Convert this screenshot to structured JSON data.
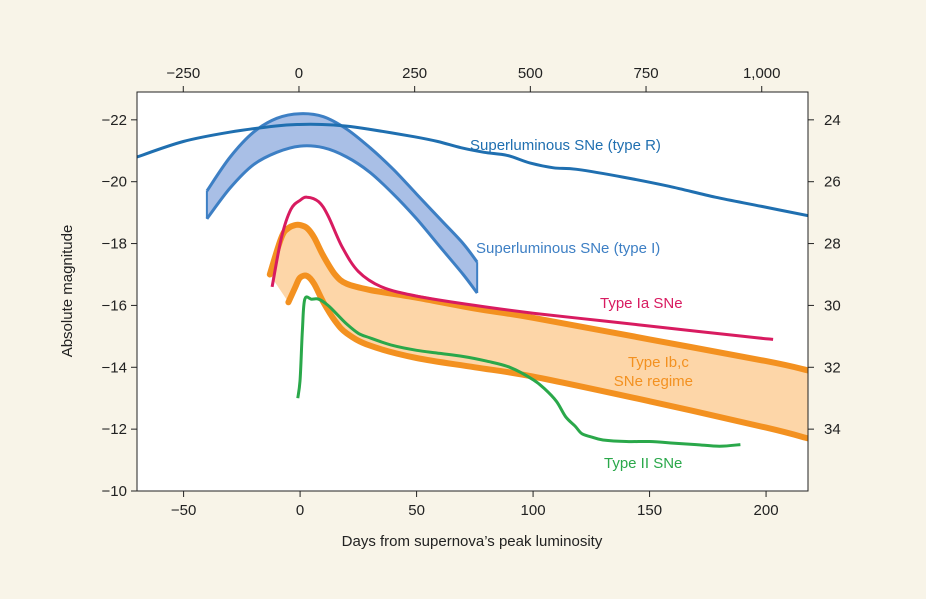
{
  "colors": {
    "background": "#f8f4e8",
    "plot_background": "#ffffff",
    "axis": "#222222",
    "superluminous_r": "#1f6fb0",
    "superluminous_i_line": "#3d7fc4",
    "superluminous_i_fill": "#a9bfe6",
    "type_ia": "#d81b60",
    "type_ibc_line": "#f39120",
    "type_ibc_fill": "#fdd6a8",
    "type_ii": "#2aa84a"
  },
  "chart_data": {
    "type": "line",
    "xlabel": "Days from supernova’s peak luminosity",
    "ylabel": "Absolute magnitude",
    "xlim": [
      -70,
      218
    ],
    "ylim": [
      -10,
      -22.9
    ],
    "x_ticks": [
      -50,
      0,
      50,
      100,
      150,
      200
    ],
    "x_tick_labels": [
      "−50",
      "0",
      "50",
      "100",
      "150",
      "200"
    ],
    "y_ticks": [
      -22,
      -20,
      -18,
      -16,
      -14,
      -12,
      -10
    ],
    "y_tick_labels": [
      "−22",
      "−20",
      "−18",
      "−16",
      "−14",
      "−12",
      "−10"
    ],
    "top_axis": {
      "ticks": [
        -250,
        0,
        250,
        500,
        750,
        1000
      ],
      "tick_labels": [
        "−250",
        "0",
        "250",
        "500",
        "750",
        "1,000"
      ],
      "range": [
        -350,
        1100
      ]
    },
    "right_axis": {
      "ticks": [
        24,
        26,
        28,
        30,
        32,
        34
      ],
      "tick_labels": [
        "24",
        "26",
        "28",
        "30",
        "32",
        "34"
      ],
      "offset_from_left": 46
    },
    "series": [
      {
        "name": "Superluminous SNe (type R)",
        "kind": "line",
        "x": [
          -350,
          -250,
          -150,
          -50,
          0,
          50,
          100,
          150,
          250,
          300,
          350,
          400,
          450,
          500,
          550,
          600,
          700,
          800,
          900,
          1000,
          1100
        ],
        "y": [
          -20.8,
          -21.3,
          -21.6,
          -21.8,
          -21.85,
          -21.85,
          -21.8,
          -21.7,
          -21.45,
          -21.3,
          -21.1,
          -20.95,
          -20.85,
          -20.6,
          -20.45,
          -20.4,
          -20.15,
          -19.85,
          -19.5,
          -19.2,
          -18.9
        ]
      },
      {
        "name": "Superluminous SNe (type I)",
        "kind": "band",
        "x": [
          -40,
          -30,
          -20,
          -10,
          0,
          10,
          20,
          30,
          40,
          50,
          60,
          70,
          76
        ],
        "y_upper": [
          -19.7,
          -20.8,
          -21.6,
          -22.05,
          -22.2,
          -22.1,
          -21.7,
          -21.1,
          -20.4,
          -19.6,
          -18.8,
          -18.0,
          -17.4
        ],
        "y_lower": [
          -18.8,
          -19.8,
          -20.55,
          -20.95,
          -21.15,
          -21.1,
          -20.8,
          -20.3,
          -19.6,
          -18.8,
          -17.9,
          -17.0,
          -16.4
        ]
      },
      {
        "name": "Type Ia SNe",
        "kind": "line",
        "x": [
          -12,
          -8,
          -4,
          0,
          3,
          8,
          12,
          18,
          25,
          35,
          50,
          75,
          100,
          130,
          160,
          190,
          203
        ],
        "y": [
          -16.6,
          -18.2,
          -19.1,
          -19.4,
          -19.5,
          -19.35,
          -18.9,
          -17.9,
          -17.1,
          -16.6,
          -16.3,
          -16.0,
          -15.75,
          -15.5,
          -15.25,
          -15.0,
          -14.9
        ]
      },
      {
        "name": "Type Ib,c\nSNe regime",
        "kind": "band",
        "x": [
          -13,
          -8,
          -5,
          -2,
          0,
          3,
          6,
          10,
          15,
          20,
          30,
          50,
          75,
          100,
          150,
          200,
          218
        ],
        "y_upper": [
          -17.0,
          -18.2,
          -18.5,
          -18.6,
          -18.6,
          -18.5,
          -18.2,
          -17.6,
          -17.0,
          -16.7,
          -16.5,
          -16.25,
          -15.9,
          -15.6,
          -14.9,
          -14.2,
          -13.9
        ],
        "y_lower": [
          null,
          null,
          -16.1,
          -16.6,
          -16.9,
          -16.95,
          -16.7,
          -16.1,
          -15.5,
          -15.1,
          -14.7,
          -14.3,
          -14.0,
          -13.7,
          -12.9,
          -12.05,
          -11.7
        ]
      },
      {
        "name": "Type II SNe",
        "kind": "line",
        "x": [
          -1,
          0,
          1,
          2,
          5,
          8,
          12,
          16,
          20,
          25,
          30,
          40,
          50,
          60,
          70,
          80,
          90,
          100,
          105,
          110,
          114,
          118,
          121,
          125,
          130,
          140,
          150,
          160,
          170,
          180,
          189
        ],
        "y": [
          -13.0,
          -13.6,
          -15.2,
          -16.2,
          -16.2,
          -16.2,
          -16.0,
          -15.7,
          -15.4,
          -15.1,
          -14.95,
          -14.7,
          -14.55,
          -14.45,
          -14.35,
          -14.2,
          -14.0,
          -13.6,
          -13.3,
          -12.9,
          -12.4,
          -12.1,
          -11.85,
          -11.75,
          -11.65,
          -11.6,
          -11.6,
          -11.55,
          -11.5,
          -11.45,
          -11.5
        ]
      }
    ]
  }
}
